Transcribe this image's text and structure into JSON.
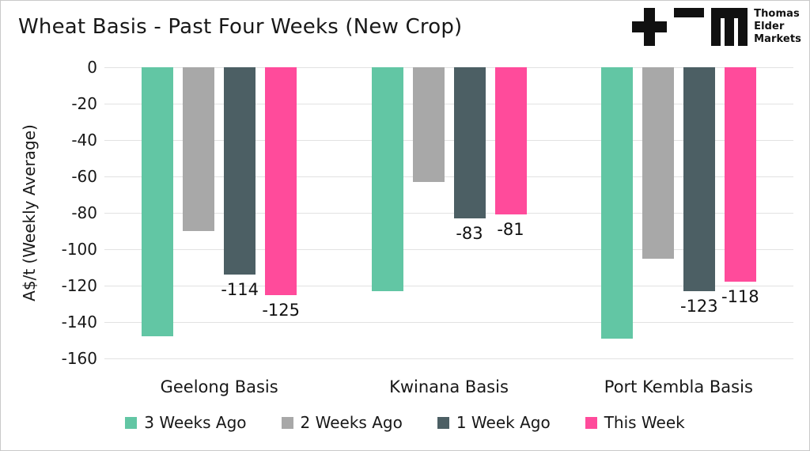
{
  "header": {
    "logo": {
      "lines": [
        "Thomas",
        "Elder",
        "Markets"
      ]
    }
  },
  "chart_data": {
    "type": "bar",
    "title": "Wheat Basis - Past Four Weeks (New Crop)",
    "xlabel": "",
    "ylabel": "A$/t (Weekly Average)",
    "categories": [
      "Geelong Basis",
      "Kwinana Basis",
      "Port Kembla Basis"
    ],
    "series": [
      {
        "name": "3 Weeks Ago",
        "color": "#62c6a4",
        "values": [
          -148,
          -123,
          -149
        ],
        "data_labels": false
      },
      {
        "name": "2 Weeks Ago",
        "color": "#a8a8a8",
        "values": [
          -90,
          -63,
          -105
        ],
        "data_labels": false
      },
      {
        "name": "1 Week Ago",
        "color": "#4c5f64",
        "values": [
          -114,
          -83,
          -123
        ],
        "data_labels": true
      },
      {
        "name": "This Week",
        "color": "#ff4b9b",
        "values": [
          -125,
          -81,
          -118
        ],
        "data_labels": true
      }
    ],
    "ylim": [
      -160,
      0
    ],
    "yticks": [
      0,
      -20,
      -40,
      -60,
      -80,
      -100,
      -120,
      -140,
      -160
    ],
    "grid": true,
    "legend_position": "bottom",
    "colors": {
      "gridline": "#e2e2e2",
      "text": "#181818",
      "logo": "#111111"
    }
  }
}
